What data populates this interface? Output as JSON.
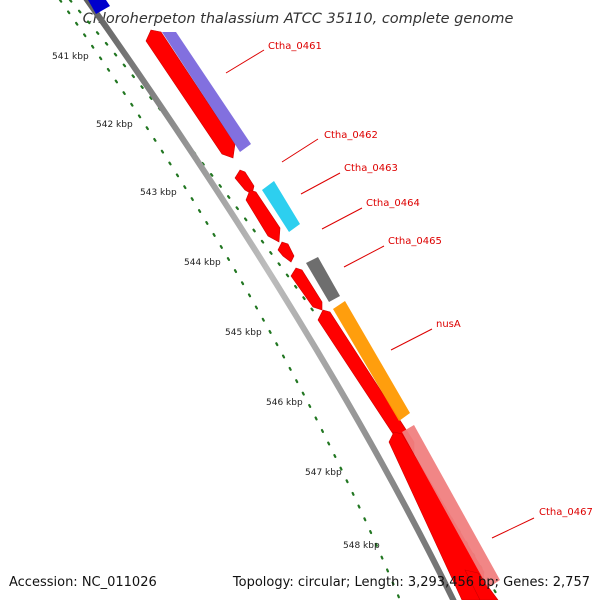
{
  "title": "Chloroherpeton thalassium ATCC 35110, complete genome",
  "footer": {
    "accession": "Accession: NC_011026",
    "summary": "Topology: circular; Length: 3,293,456 bp; Genes: 2,757"
  },
  "colors": {
    "backbone": "#808080",
    "cds_forward": "#ff0000",
    "tick_dots": "#227722",
    "label_line": "#dd0000"
  },
  "scale_labels": [
    "541 kbp",
    "542 kbp",
    "543 kbp",
    "544 kbp",
    "545 kbp",
    "546 kbp",
    "547 kbp",
    "548 kbp"
  ],
  "gene_labels": [
    {
      "text": "Ctha_0461",
      "color": "#7b68dd"
    },
    {
      "text": "Ctha_0462",
      "color": "#ff0000"
    },
    {
      "text": "Ctha_0463",
      "color": "#22ccee"
    },
    {
      "text": "Ctha_0464",
      "color": "#ff0000"
    },
    {
      "text": "Ctha_0465",
      "color": "#666666"
    },
    {
      "text": "nusA",
      "color": "#ff9900"
    },
    {
      "text": "Ctha_0467",
      "color": "#f08080"
    }
  ]
}
